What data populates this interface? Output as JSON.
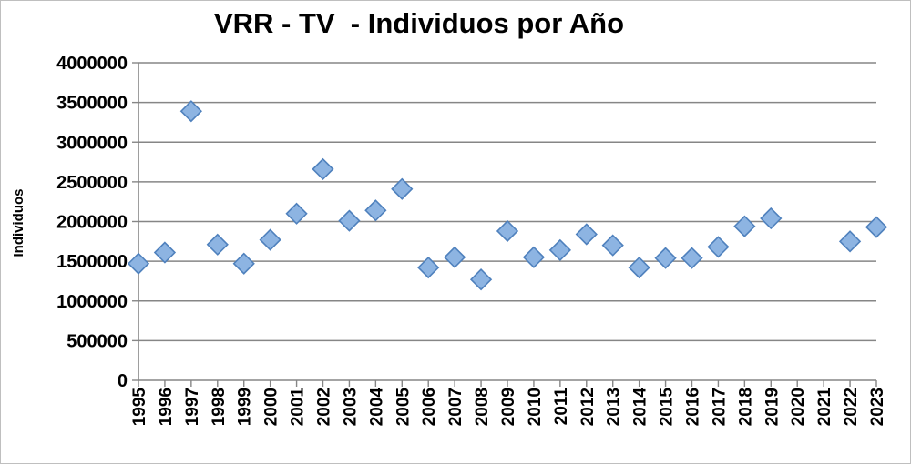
{
  "chart_data": {
    "type": "scatter",
    "title": "VRR - TV  - Individuos por Año",
    "xlabel": "",
    "ylabel": "Individuos",
    "ylim": [
      0,
      4000000
    ],
    "yticks": [
      "0",
      "500000",
      "1000000",
      "1500000",
      "2000000",
      "2500000",
      "3000000",
      "3500000",
      "4000000"
    ],
    "categories": [
      "1995",
      "1996",
      "1997",
      "1998",
      "1999",
      "2000",
      "2001",
      "2002",
      "2003",
      "2004",
      "2005",
      "2006",
      "2007",
      "2008",
      "2009",
      "2010",
      "2011",
      "2012",
      "2013",
      "2014",
      "2015",
      "2016",
      "2017",
      "2018",
      "2019",
      "2020",
      "2021",
      "2022",
      "2023"
    ],
    "values": [
      1470000,
      1610000,
      3390000,
      1710000,
      1470000,
      1770000,
      2100000,
      2660000,
      2010000,
      2140000,
      2410000,
      1420000,
      1550000,
      1270000,
      1880000,
      1550000,
      1640000,
      1840000,
      1700000,
      1420000,
      1540000,
      1540000,
      1680000,
      1940000,
      2040000,
      null,
      null,
      1750000,
      1930000
    ],
    "grid": true,
    "legend": "none",
    "marker": "diamond",
    "colors": {
      "marker_fill": "#8DB4E2",
      "marker_edge": "#4F81BD",
      "grid": "#868686",
      "axis": "#868686"
    }
  }
}
